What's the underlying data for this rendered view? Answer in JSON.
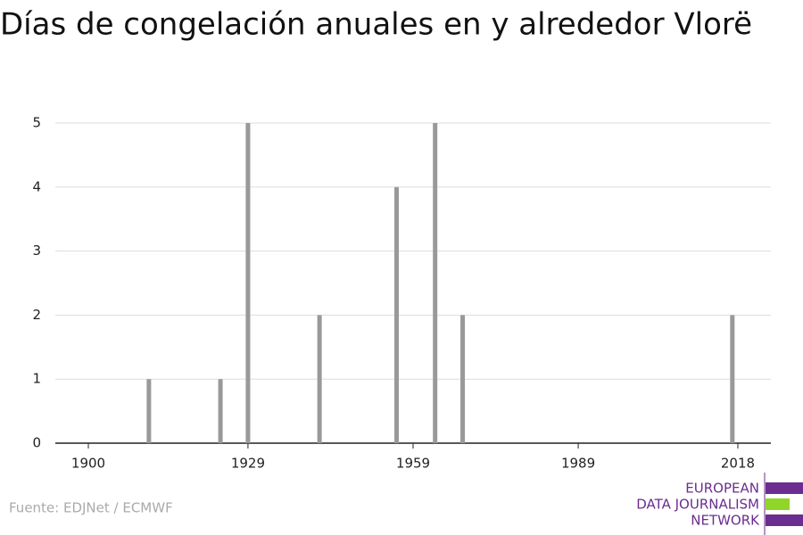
{
  "chart_data": {
    "type": "bar",
    "title": "Días de congelación anuales en y alrededor Vlorë",
    "x": [
      1911,
      1924,
      1929,
      1942,
      1956,
      1963,
      1968,
      2017
    ],
    "values": [
      1,
      1,
      5,
      2,
      4,
      5,
      2,
      2
    ],
    "color": "#999999",
    "xlim": [
      1894,
      2024
    ],
    "xticks": [
      1900,
      1929,
      1959,
      1989,
      2018
    ],
    "ylim": [
      0,
      5
    ],
    "yticks": [
      0,
      1,
      2,
      3,
      4,
      5
    ],
    "grid": true
  },
  "source": "Fuente: EDJNet / ECMWF",
  "logo": [
    "EUROPEAN",
    "DATA JOURNALISM",
    "NETWORK"
  ]
}
